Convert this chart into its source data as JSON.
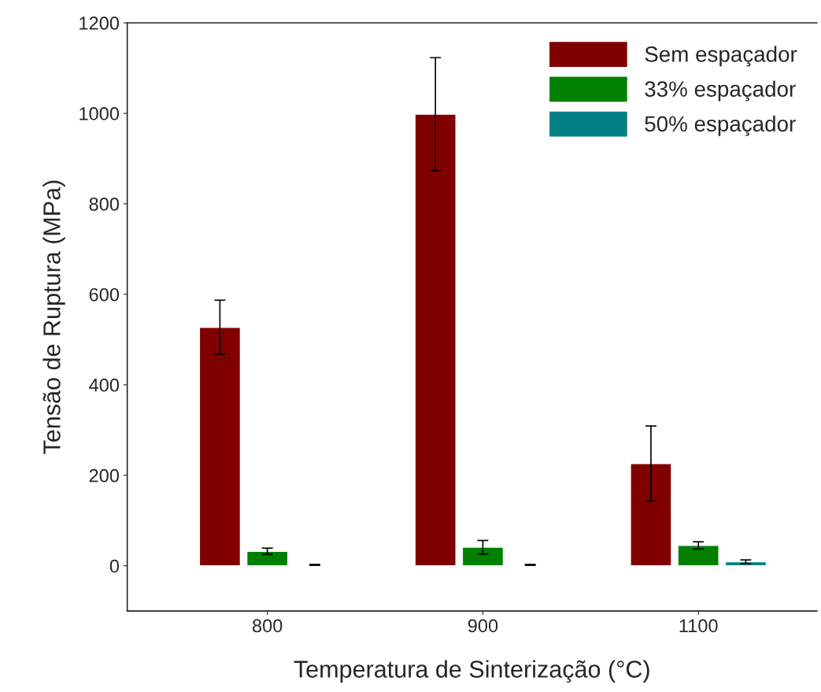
{
  "chart_data": {
    "type": "bar",
    "xlabel": "Temperatura de Sinterização (°C)",
    "ylabel": "Tensão de Ruptura (MPa)",
    "categories": [
      "800",
      "900",
      "1100"
    ],
    "series": [
      {
        "name": "Sem espaçador",
        "color": "#800000",
        "values": [
          527,
          998,
          226
        ],
        "errors": [
          60,
          125,
          83
        ]
      },
      {
        "name": "33% espaçador",
        "color": "#008000",
        "values": [
          32,
          41,
          45
        ],
        "errors": [
          7,
          15,
          8
        ]
      },
      {
        "name": "50% espaçador",
        "color": "#008080",
        "values": [
          2,
          2,
          9
        ],
        "errors": [
          1,
          1,
          4
        ]
      }
    ],
    "ylim": [
      -100,
      1200
    ],
    "yticks": [
      0,
      200,
      400,
      600,
      800,
      1000,
      1200
    ],
    "grid": false,
    "legend": "top right"
  }
}
